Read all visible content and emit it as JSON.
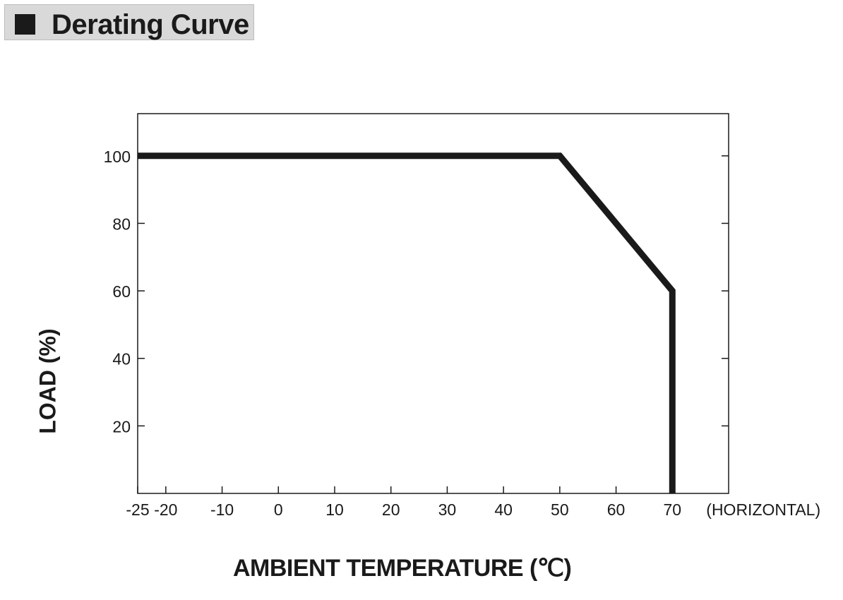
{
  "header": {
    "title": "Derating Curve"
  },
  "chart_data": {
    "type": "line",
    "title": "Derating Curve",
    "xlabel": "AMBIENT TEMPERATURE (℃)",
    "ylabel": "LOAD (%)",
    "x_ticks": [
      -25,
      -20,
      -10,
      0,
      10,
      20,
      30,
      40,
      50,
      60,
      70
    ],
    "x_tick_labels": [
      "-25",
      "-20",
      "-10",
      "0",
      "10",
      "20",
      "30",
      "40",
      "50",
      "60",
      "70"
    ],
    "x_axis_note": "(HORIZONTAL)",
    "y_ticks": [
      20,
      40,
      60,
      80,
      100
    ],
    "y_tick_labels": [
      "20",
      "40",
      "60",
      "80",
      "100"
    ],
    "xlim": [
      -25,
      80
    ],
    "ylim": [
      0,
      112.5
    ],
    "grid": false,
    "series": [
      {
        "x": [
          -25,
          50,
          70,
          70
        ],
        "y": [
          100,
          100,
          60,
          0
        ],
        "color": "#1a1a1a"
      }
    ]
  }
}
